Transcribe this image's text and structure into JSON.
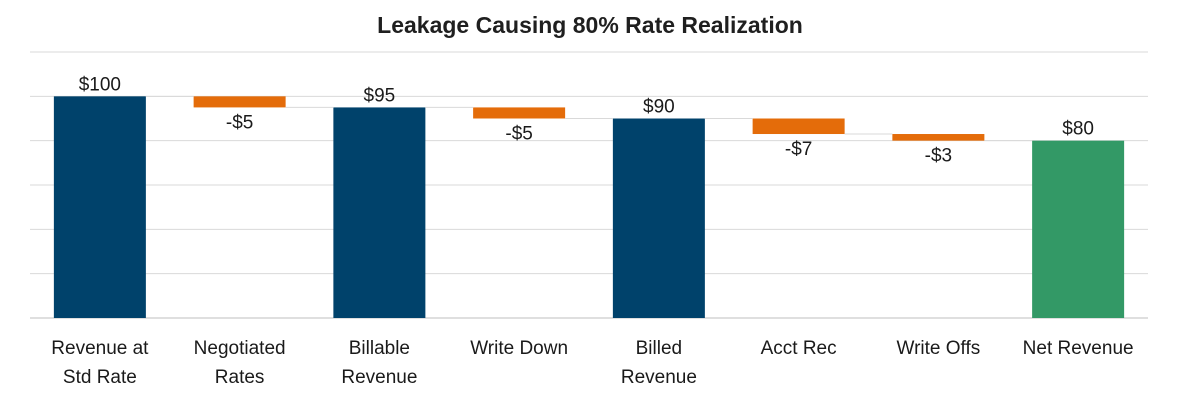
{
  "chart_data": {
    "type": "bar",
    "subtype": "waterfall",
    "title": "Leakage Causing 80% Rate Realization",
    "categories": [
      [
        "Revenue at",
        "Std Rate"
      ],
      [
        "Negotiated",
        "Rates"
      ],
      [
        "Billable",
        "Revenue"
      ],
      [
        "Write Down"
      ],
      [
        "Billed",
        "Revenue"
      ],
      [
        "Acct Rec"
      ],
      [
        "Write Offs"
      ],
      [
        "Net Revenue"
      ]
    ],
    "values": [
      100,
      -5,
      95,
      -5,
      90,
      -7,
      -3,
      80
    ],
    "kinds": [
      "total",
      "delta",
      "total",
      "delta",
      "total",
      "delta",
      "delta",
      "final"
    ],
    "data_labels": [
      "$100",
      "-$5",
      "$95",
      "-$5",
      "$90",
      "-$7",
      "-$3",
      "$80"
    ],
    "ylim": [
      0,
      120
    ],
    "grid": true,
    "xlabel": "",
    "ylabel": "",
    "colors": {
      "total": "#00426b",
      "delta": "#e46c0a",
      "final": "#339966",
      "grid": "#d9d9d9",
      "axis": "#bfbfbf"
    }
  }
}
